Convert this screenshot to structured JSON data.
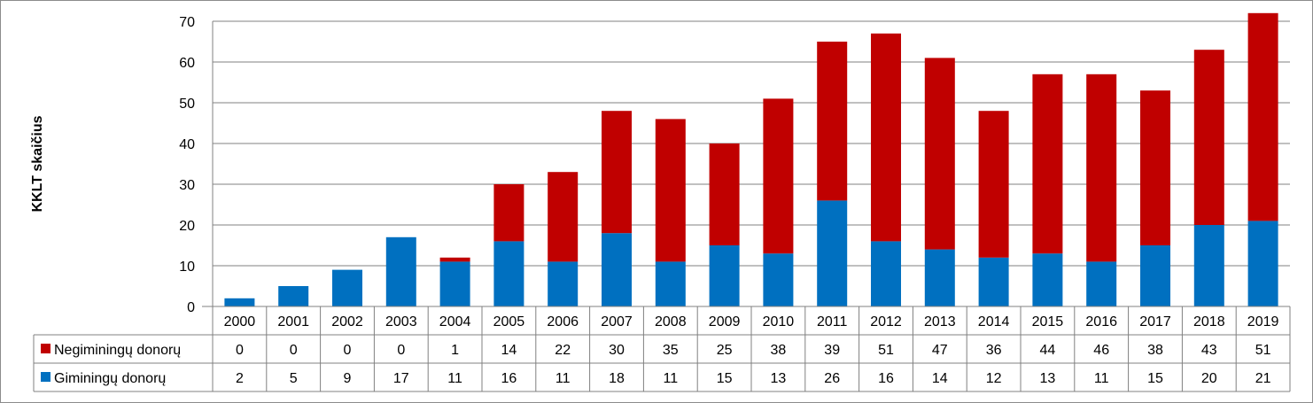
{
  "chart_data": {
    "type": "bar",
    "stacked": true,
    "title": "",
    "xlabel": "",
    "ylabel": "KKLT skaičius",
    "ylim": [
      0,
      70
    ],
    "yticks": [
      0,
      10,
      20,
      30,
      40,
      50,
      60,
      70
    ],
    "grid": true,
    "legend": "data-table",
    "categories": [
      "2000",
      "2001",
      "2002",
      "2003",
      "2004",
      "2005",
      "2006",
      "2007",
      "2008",
      "2009",
      "2010",
      "2011",
      "2012",
      "2013",
      "2014",
      "2015",
      "2016",
      "2017",
      "2018",
      "2019"
    ],
    "series": [
      {
        "name": "Negiminingų donorų",
        "color": "#c00000",
        "values": [
          0,
          0,
          0,
          0,
          1,
          14,
          22,
          30,
          35,
          25,
          38,
          39,
          51,
          47,
          36,
          44,
          46,
          38,
          43,
          51
        ]
      },
      {
        "name": "Giminingų donorų",
        "color": "#0070c0",
        "values": [
          2,
          5,
          9,
          17,
          11,
          16,
          11,
          18,
          11,
          15,
          13,
          26,
          16,
          14,
          12,
          13,
          11,
          15,
          20,
          21
        ]
      }
    ]
  }
}
